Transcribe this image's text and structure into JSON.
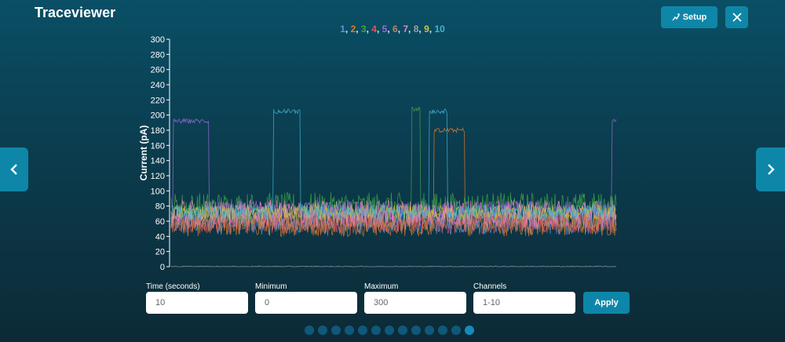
{
  "app": {
    "title": "Traceviewer"
  },
  "header": {
    "setup_label": "Setup"
  },
  "controls": {
    "fields": [
      {
        "label": "Time (seconds)",
        "value": "10"
      },
      {
        "label": "Minimum",
        "value": "0"
      },
      {
        "label": "Maximum",
        "value": "300"
      },
      {
        "label": "Channels",
        "value": "1-10"
      }
    ],
    "apply_label": "Apply"
  },
  "pager": {
    "count": 13,
    "active_index": 12
  },
  "icons": {
    "setup": "chart-edit-icon",
    "close": "close-icon",
    "prev": "chevron-left-icon",
    "next": "chevron-right-icon"
  },
  "chart_data": {
    "type": "line",
    "title": "",
    "xlabel": "",
    "ylabel": "Current (pA)",
    "ylim": [
      0,
      300
    ],
    "yticks": [
      0,
      20,
      40,
      60,
      80,
      100,
      120,
      140,
      160,
      180,
      200,
      220,
      240,
      260,
      280,
      300
    ],
    "x_range_seconds": [
      0,
      10
    ],
    "grid": false,
    "legend_position": "top-center",
    "series": [
      {
        "name": "1",
        "color": "#6a8fd8",
        "baseline": 60,
        "noise": 18,
        "events": []
      },
      {
        "name": "2",
        "color": "#e07b2a",
        "baseline": 55,
        "noise": 15,
        "events": [
          {
            "start": 5.9,
            "end": 6.6,
            "level": 180
          }
        ]
      },
      {
        "name": "3",
        "color": "#3fa64a",
        "baseline": 78,
        "noise": 20,
        "events": [
          {
            "start": 5.4,
            "end": 5.6,
            "level": 208
          }
        ]
      },
      {
        "name": "4",
        "color": "#e0545a",
        "baseline": 58,
        "noise": 14,
        "events": []
      },
      {
        "name": "5",
        "color": "#9b6bd6",
        "baseline": 75,
        "noise": 12,
        "events": [
          {
            "start": 0.05,
            "end": 0.85,
            "level": 192
          },
          {
            "start": 9.9,
            "end": 10.0,
            "level": 192
          }
        ]
      },
      {
        "name": "6",
        "color": "#b08a70",
        "baseline": 62,
        "noise": 14,
        "events": []
      },
      {
        "name": "7",
        "color": "#ea7fc3",
        "baseline": 70,
        "noise": 18,
        "events": []
      },
      {
        "name": "8",
        "color": "#9aa0a6",
        "baseline": 0,
        "noise": 1,
        "events": []
      },
      {
        "name": "9",
        "color": "#d4c238",
        "baseline": 72,
        "noise": 10,
        "events": []
      },
      {
        "name": "10",
        "color": "#3fb6d2",
        "baseline": 72,
        "noise": 10,
        "events": [
          {
            "start": 2.3,
            "end": 2.9,
            "level": 205
          },
          {
            "start": 5.8,
            "end": 6.2,
            "level": 205
          }
        ]
      }
    ]
  }
}
